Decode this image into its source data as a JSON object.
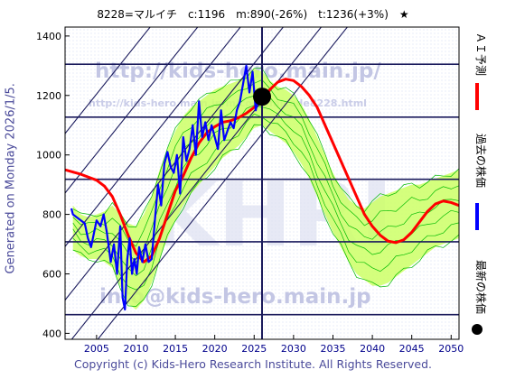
{
  "header": {
    "title": "8228=マルイチ　c:1196　m:890(-26%)　t:1236(+3%)　★"
  },
  "side_left": "Generated on Monday 2026/1/5.",
  "footer": "Copyright (c) Kids-Hero Research Institute. All Rights Reserved.",
  "watermarks": {
    "top": "http://kids-hero.main.jp/",
    "small": "http://kids-hero.main.jp/mjcode/mjcode8228.html",
    "center": "KHRI",
    "bottom": "info@kids-hero.main.jp"
  },
  "legend": [
    {
      "label": "ＡＩ予測",
      "color": "#ff0000"
    },
    {
      "label": "過去の株価",
      "color": "#0000ff"
    },
    {
      "label": "最新の株価",
      "color": "#000000"
    }
  ],
  "colors": {
    "ai": "#ff0000",
    "past": "#0000ff",
    "band_fill": "#ccff66",
    "band_lines": "#00bb00",
    "hlines": "#1a1a5c",
    "diag": "#1a1a5c",
    "frame": "#000000",
    "tick_text": "#000000",
    "tick_text_x": "#00008b"
  },
  "chart_data": {
    "type": "line",
    "title": "8228=マルイチ　c:1196　m:890(-26%)　t:1236(+3%)　★",
    "xlim": [
      2001,
      2051
    ],
    "ylim": [
      380,
      1430
    ],
    "x_ticks": [
      2005,
      2010,
      2015,
      2020,
      2025,
      2030,
      2035,
      2040,
      2045,
      2050
    ],
    "y_ticks": [
      400,
      600,
      800,
      1000,
      1200,
      1400
    ],
    "horizontal_lines": [
      463,
      708,
      918,
      1127,
      1305
    ],
    "vertical_line_x": 2026.0,
    "diagonal_lines": [
      {
        "x0": 2001,
        "y0": 242,
        "x1": 2051,
        "y1": 1900
      },
      {
        "x0": 2001,
        "y0": 352,
        "x1": 2051,
        "y1": 2010
      },
      {
        "x0": 2001,
        "y0": 512,
        "x1": 2051,
        "y1": 2170
      },
      {
        "x0": 2001,
        "y0": 692,
        "x1": 2051,
        "y1": 2350
      },
      {
        "x0": 2001,
        "y0": 872,
        "x1": 2051,
        "y1": 2530
      },
      {
        "x0": 2001,
        "y0": 1072,
        "x1": 2051,
        "y1": 2730
      }
    ],
    "latest": {
      "x": 2026.0,
      "y": 1196
    },
    "series": [
      {
        "name": "ＡＩ予測",
        "x": [
          2001,
          2003,
          2005,
          2006,
          2007,
          2008,
          2009,
          2010,
          2011,
          2012,
          2013,
          2014,
          2015,
          2016,
          2017,
          2018,
          2019,
          2020,
          2021,
          2022,
          2023,
          2024,
          2025,
          2026,
          2027,
          2028,
          2029,
          2030,
          2031,
          2032,
          2033,
          2034,
          2035,
          2036,
          2037,
          2038,
          2039,
          2040,
          2041,
          2042,
          2043,
          2044,
          2045,
          2046,
          2047,
          2048,
          2049,
          2050,
          2051
        ],
        "values": [
          950,
          935,
          915,
          895,
          860,
          800,
          730,
          670,
          640,
          660,
          720,
          800,
          880,
          930,
          990,
          1040,
          1075,
          1095,
          1110,
          1115,
          1125,
          1140,
          1160,
          1190,
          1220,
          1245,
          1255,
          1250,
          1230,
          1200,
          1160,
          1100,
          1040,
          980,
          920,
          860,
          800,
          760,
          730,
          710,
          705,
          715,
          740,
          775,
          810,
          835,
          845,
          840,
          830
        ]
      },
      {
        "name": "過去の株価",
        "x": [
          2001.8,
          2002.0,
          2003.5,
          2003.9,
          2004.3,
          2005.0,
          2005.5,
          2005.9,
          2006.3,
          2006.8,
          2007.2,
          2007.6,
          2008.0,
          2008.3,
          2008.6,
          2008.9,
          2009.2,
          2009.5,
          2009.8,
          2010.1,
          2010.4,
          2010.8,
          2011.2,
          2011.6,
          2012.0,
          2012.4,
          2012.8,
          2013.2,
          2013.6,
          2014.0,
          2014.4,
          2014.8,
          2015.2,
          2015.6,
          2016.0,
          2016.4,
          2016.8,
          2017.2,
          2017.6,
          2018.0,
          2018.4,
          2018.8,
          2019.2,
          2019.6,
          2020.0,
          2020.4,
          2020.8,
          2021.2,
          2021.6,
          2022.0,
          2022.4,
          2022.8,
          2023.2,
          2023.6,
          2024.0,
          2024.4,
          2024.8,
          2025.2,
          2025.6,
          2026.0
        ],
        "values": [
          820,
          800,
          770,
          720,
          690,
          780,
          760,
          800,
          740,
          640,
          700,
          600,
          760,
          520,
          480,
          650,
          720,
          600,
          650,
          600,
          690,
          640,
          700,
          640,
          650,
          780,
          900,
          830,
          970,
          1010,
          960,
          940,
          1000,
          870,
          1060,
          980,
          1020,
          1100,
          1000,
          1180,
          1060,
          1110,
          1050,
          1100,
          1060,
          1020,
          1150,
          1050,
          1080,
          1110,
          1090,
          1150,
          1180,
          1240,
          1300,
          1210,
          1280,
          1150,
          1200,
          1196
        ]
      }
    ],
    "band": {
      "x": [
        2002,
        2003,
        2004,
        2005,
        2006,
        2007,
        2008,
        2009,
        2010,
        2011,
        2012,
        2013,
        2014,
        2015,
        2016,
        2017,
        2018,
        2019,
        2020,
        2021,
        2022,
        2023,
        2024,
        2025,
        2026,
        2027,
        2028,
        2029,
        2030,
        2031,
        2032,
        2033,
        2034,
        2035,
        2036,
        2037,
        2038,
        2039,
        2040,
        2041,
        2042,
        2043,
        2044,
        2045,
        2046,
        2047,
        2048,
        2049,
        2050,
        2051
      ],
      "upper": [
        830,
        800,
        790,
        800,
        810,
        830,
        800,
        770,
        760,
        800,
        860,
        950,
        1020,
        1080,
        1130,
        1160,
        1180,
        1200,
        1220,
        1230,
        1240,
        1250,
        1270,
        1290,
        1280,
        1250,
        1230,
        1220,
        1200,
        1170,
        1120,
        1060,
        1000,
        940,
        890,
        850,
        830,
        820,
        840,
        860,
        870,
        880,
        890,
        900,
        900,
        910,
        920,
        930,
        940,
        950
      ],
      "lower": [
        680,
        660,
        650,
        650,
        640,
        620,
        560,
        500,
        480,
        510,
        570,
        650,
        720,
        780,
        830,
        870,
        900,
        930,
        960,
        990,
        1010,
        1030,
        1060,
        1090,
        1100,
        1080,
        1060,
        1040,
        1010,
        970,
        920,
        860,
        800,
        740,
        690,
        640,
        600,
        580,
        560,
        560,
        570,
        590,
        610,
        630,
        650,
        670,
        690,
        700,
        710,
        720
      ]
    }
  }
}
